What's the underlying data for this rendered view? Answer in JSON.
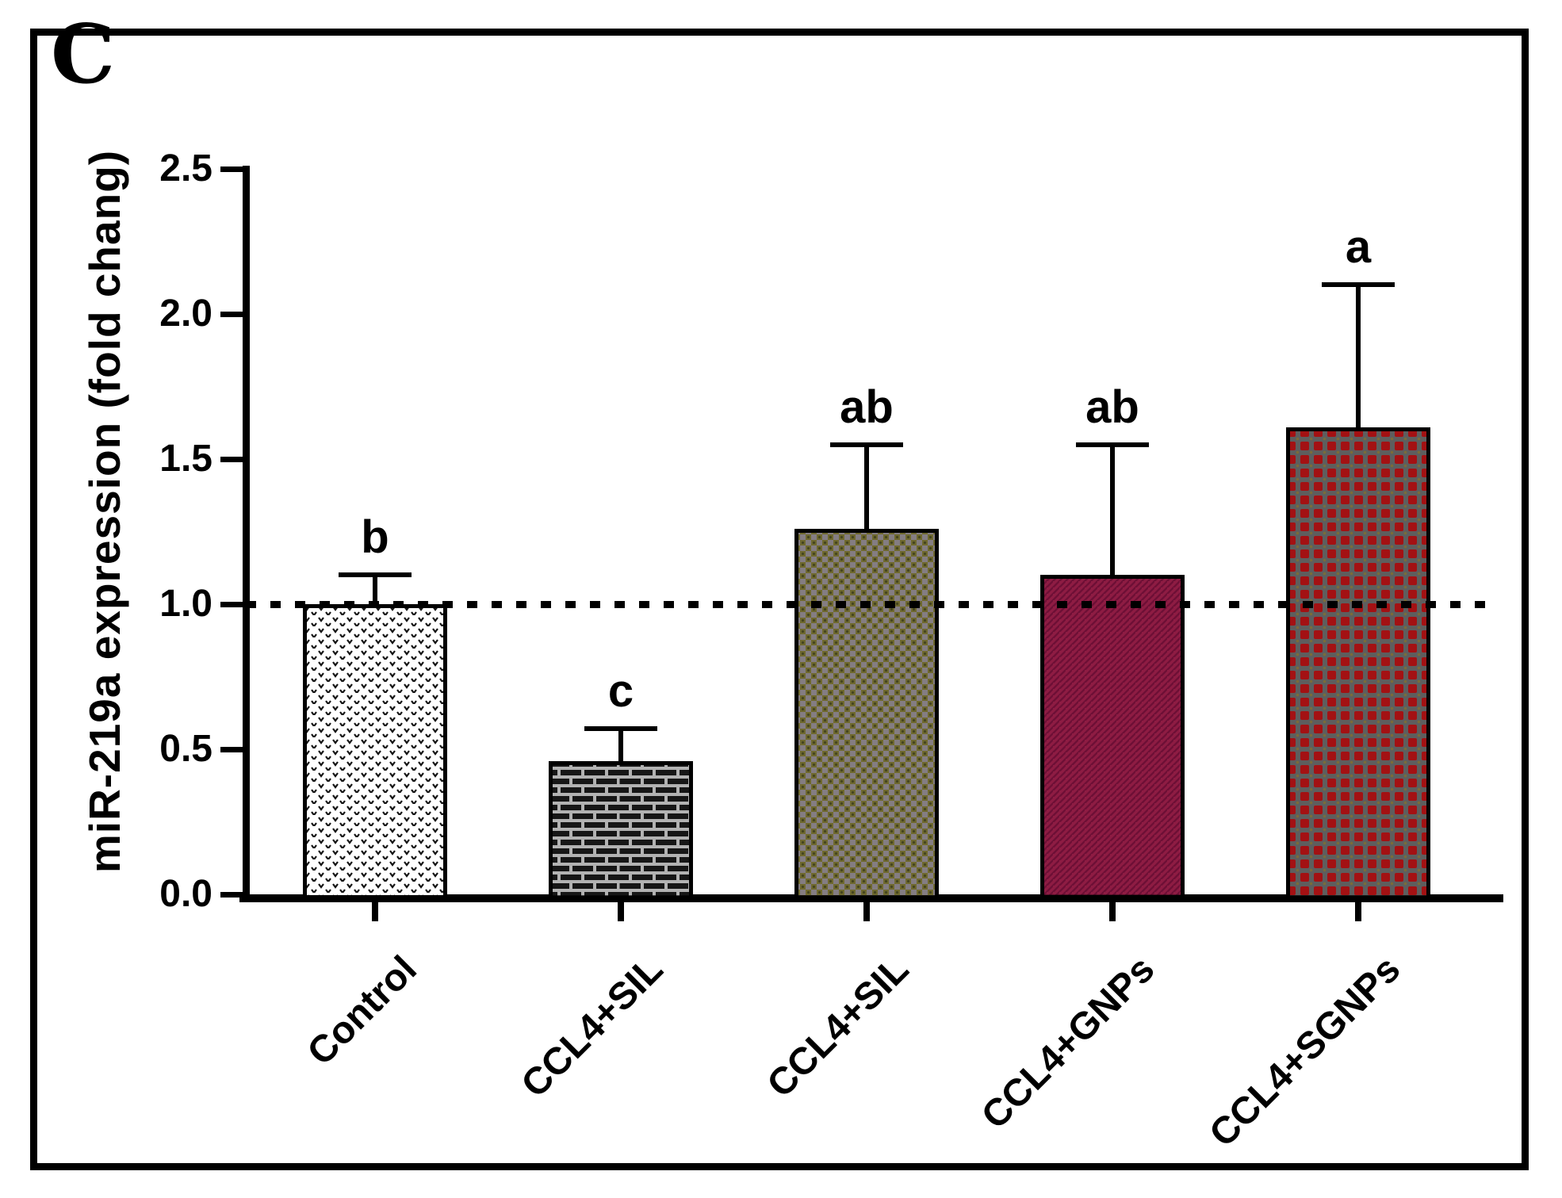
{
  "panel_label": "C",
  "colors": {
    "axis": "#000000",
    "background": "#ffffff",
    "frame_border": "#000000",
    "reference_line": "#000000"
  },
  "chart_data": {
    "type": "bar",
    "title": "",
    "xlabel": "",
    "ylabel": "miR-219a expression (fold chang)",
    "ylim": [
      0,
      2.5
    ],
    "yticks": [
      0,
      0.5,
      1,
      1.5,
      2,
      2.5
    ],
    "ytick_labels": [
      "0.0",
      "0.5",
      "1.0",
      "1.5",
      "2.0",
      "2.5"
    ],
    "grid": false,
    "legend_position": "none",
    "reference_line_y": 1.0,
    "reference_line_style": "dotted",
    "categories": [
      "Control",
      "CCL4+SIL",
      "CCL4+SIL",
      "CCL4+GNPs",
      "CCL4+SGNPs"
    ],
    "values": [
      1.0,
      0.46,
      1.26,
      1.1,
      1.61
    ],
    "error_plus": [
      0.1,
      0.11,
      0.29,
      0.45,
      0.49
    ],
    "significance_letters": [
      "b",
      "c",
      "ab",
      "ab",
      "a"
    ],
    "bar_styles": [
      {
        "pattern": "stipple",
        "fill": "#ffffff",
        "accent": "#141414",
        "detail": "#141414"
      },
      {
        "pattern": "brick",
        "fill": "#161616",
        "accent": "#b2b2b2",
        "detail": "#161616"
      },
      {
        "pattern": "dot-check",
        "fill": "#6f692e",
        "accent": "#847d82",
        "detail": "#44441f"
      },
      {
        "pattern": "diagonal",
        "fill": "#8e1c43",
        "accent": "#6e0f36",
        "detail": "#6e0f36"
      },
      {
        "pattern": "check",
        "fill": "#a31113",
        "accent": "#5e5e5e",
        "detail": "#7b6c38"
      }
    ]
  }
}
